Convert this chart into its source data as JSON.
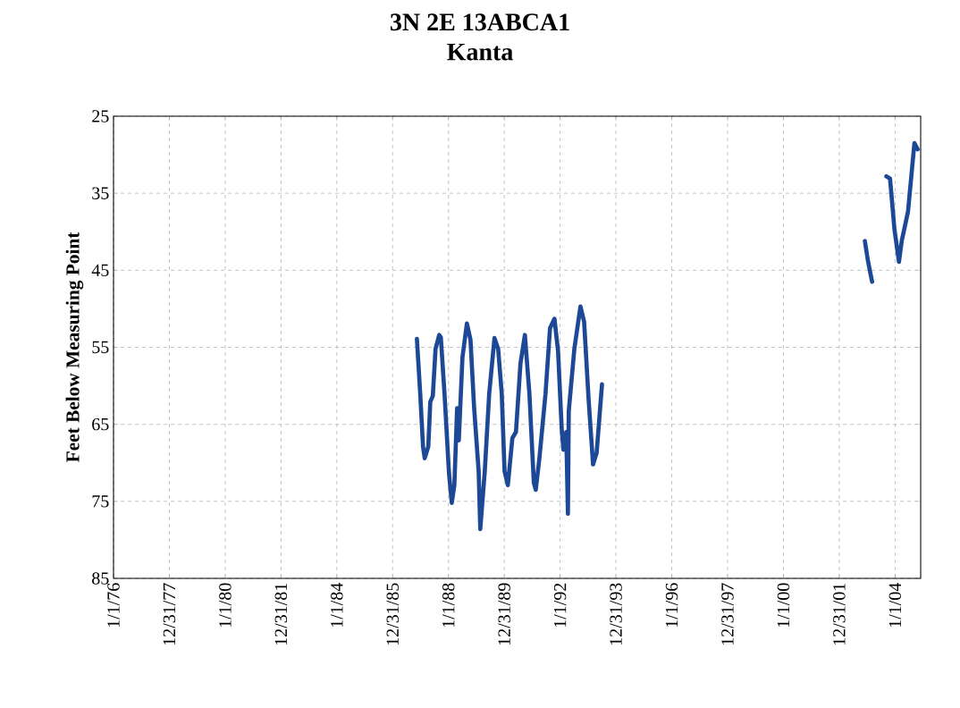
{
  "chart_data": {
    "type": "line",
    "title": "3N 2E 13ABCA1",
    "subtitle": "Kanta",
    "ylabel": "Feet Below Measuring Point",
    "x": [
      "1986-11-14",
      "1986-12-27",
      "1987-02-02",
      "1987-02-24",
      "1987-04-12",
      "1987-05-08",
      "1987-06-10",
      "1987-07-16",
      "1987-09-02",
      "1987-09-23",
      "1987-11-10",
      "1988-01-08",
      "1988-02-13",
      "1988-03-18",
      "1988-04-23",
      "1988-05-15",
      "1988-07-02",
      "1988-08-29",
      "1988-10-15",
      "1988-12-02",
      "1989-01-30",
      "1989-02-20",
      "1989-04-20",
      "1989-06-17",
      "1989-08-25",
      "1989-10-12",
      "1989-11-28",
      "1990-01-04",
      "1990-02-16",
      "1990-04-16",
      "1990-06-02",
      "1990-07-31",
      "1990-09-27",
      "1990-11-25",
      "1991-01-22",
      "1991-02-16",
      "1991-04-05",
      "1991-06-24",
      "1991-08-22",
      "1991-10-19",
      "1991-12-05",
      "1992-01-22",
      "1992-02-13",
      "1992-03-21",
      "1992-04-12",
      "1992-04-23",
      "1992-07-05",
      "1992-09-23",
      "1992-11-10",
      "1993-01-08",
      "1993-03-07",
      "1993-04-23",
      "1993-07-02",
      "1998-01-01",
      "2002-12-02",
      "2003-01-08",
      "2003-02-06",
      "2003-03-07",
      "2003-06-01",
      "2003-09-09",
      "2003-10-27",
      "2003-12-24",
      "2004-02-21",
      "2004-03-28",
      "2004-06-18",
      "2004-09-10",
      "2004-10-23"
    ],
    "series": [
      {
        "color": "#1c4896",
        "values": [
          53.9,
          61.0,
          67.9,
          69.4,
          67.9,
          62.1,
          61.3,
          55.2,
          53.4,
          53.7,
          61.0,
          71.4,
          75.2,
          72.9,
          62.9,
          67.1,
          56.3,
          51.9,
          54.0,
          62.9,
          71.1,
          78.6,
          71.1,
          61.0,
          53.8,
          55.2,
          61.0,
          71.1,
          72.9,
          66.8,
          66.0,
          57.1,
          53.4,
          61.0,
          72.6,
          73.5,
          69.4,
          61.0,
          52.5,
          51.3,
          55.5,
          65.6,
          68.3,
          66.0,
          76.6,
          63.3,
          55.2,
          49.7,
          51.7,
          61.8,
          70.2,
          68.7,
          59.8,
          null,
          41.2,
          43.6,
          45.1,
          46.5,
          null,
          32.8,
          33.1,
          39.7,
          43.9,
          41.2,
          37.4,
          28.5,
          29.3
        ]
      }
    ],
    "xlim": [
      "1976-01-01",
      "2004-12-01"
    ],
    "ylim": [
      85,
      25
    ],
    "xticks": [
      {
        "value": "1976-01-01",
        "label": "1/1/76"
      },
      {
        "value": "1977-12-31",
        "label": "12/31/77"
      },
      {
        "value": "1980-01-01",
        "label": "1/1/80"
      },
      {
        "value": "1981-12-31",
        "label": "12/31/81"
      },
      {
        "value": "1984-01-01",
        "label": "1/1/84"
      },
      {
        "value": "1985-12-31",
        "label": "12/31/85"
      },
      {
        "value": "1988-01-01",
        "label": "1/1/88"
      },
      {
        "value": "1989-12-31",
        "label": "12/31/89"
      },
      {
        "value": "1992-01-01",
        "label": "1/1/92"
      },
      {
        "value": "1993-12-31",
        "label": "12/31/93"
      },
      {
        "value": "1996-01-01",
        "label": "1/1/96"
      },
      {
        "value": "1997-12-31",
        "label": "12/31/97"
      },
      {
        "value": "2000-01-01",
        "label": "1/1/00"
      },
      {
        "value": "2001-12-31",
        "label": "12/31/01"
      },
      {
        "value": "2004-01-01",
        "label": "1/1/04"
      }
    ],
    "yticks": [
      25,
      35,
      45,
      55,
      65,
      75,
      85
    ],
    "grid": true,
    "marker": "none",
    "line_style": "solid"
  }
}
